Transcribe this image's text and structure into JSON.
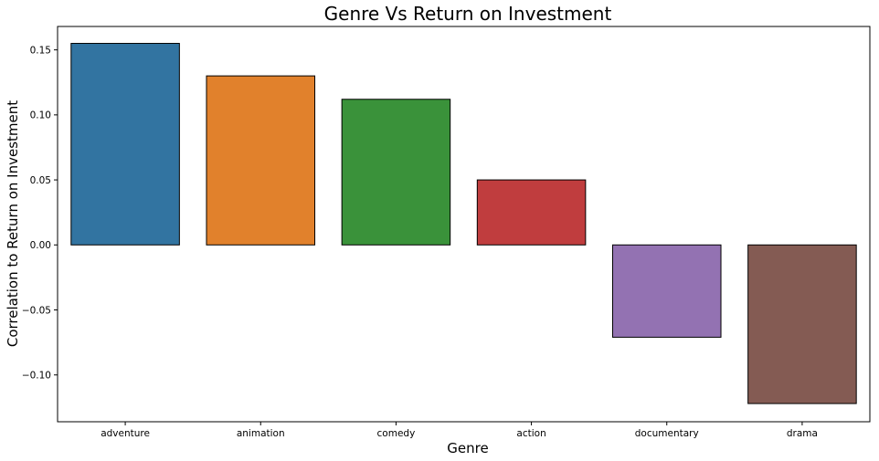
{
  "chart_data": {
    "type": "bar",
    "title": "Genre Vs Return on Investment",
    "xlabel": "Genre",
    "ylabel": "Correlation to Return on Investment",
    "categories": [
      "adventure",
      "animation",
      "comedy",
      "action",
      "documentary",
      "drama"
    ],
    "values": [
      0.155,
      0.13,
      0.112,
      0.05,
      -0.071,
      -0.122
    ],
    "colors": [
      "#3274a1",
      "#e1812c",
      "#3a923a",
      "#c03d3e",
      "#9372b2",
      "#845b53"
    ],
    "ylim": [
      -0.136,
      0.168
    ],
    "yticks": [
      -0.1,
      -0.05,
      0.0,
      0.05,
      0.1,
      0.15
    ],
    "ytick_labels": [
      "−0.10",
      "−0.05",
      "0.00",
      "0.05",
      "0.10",
      "0.15"
    ],
    "grid": false,
    "legend": "none"
  }
}
